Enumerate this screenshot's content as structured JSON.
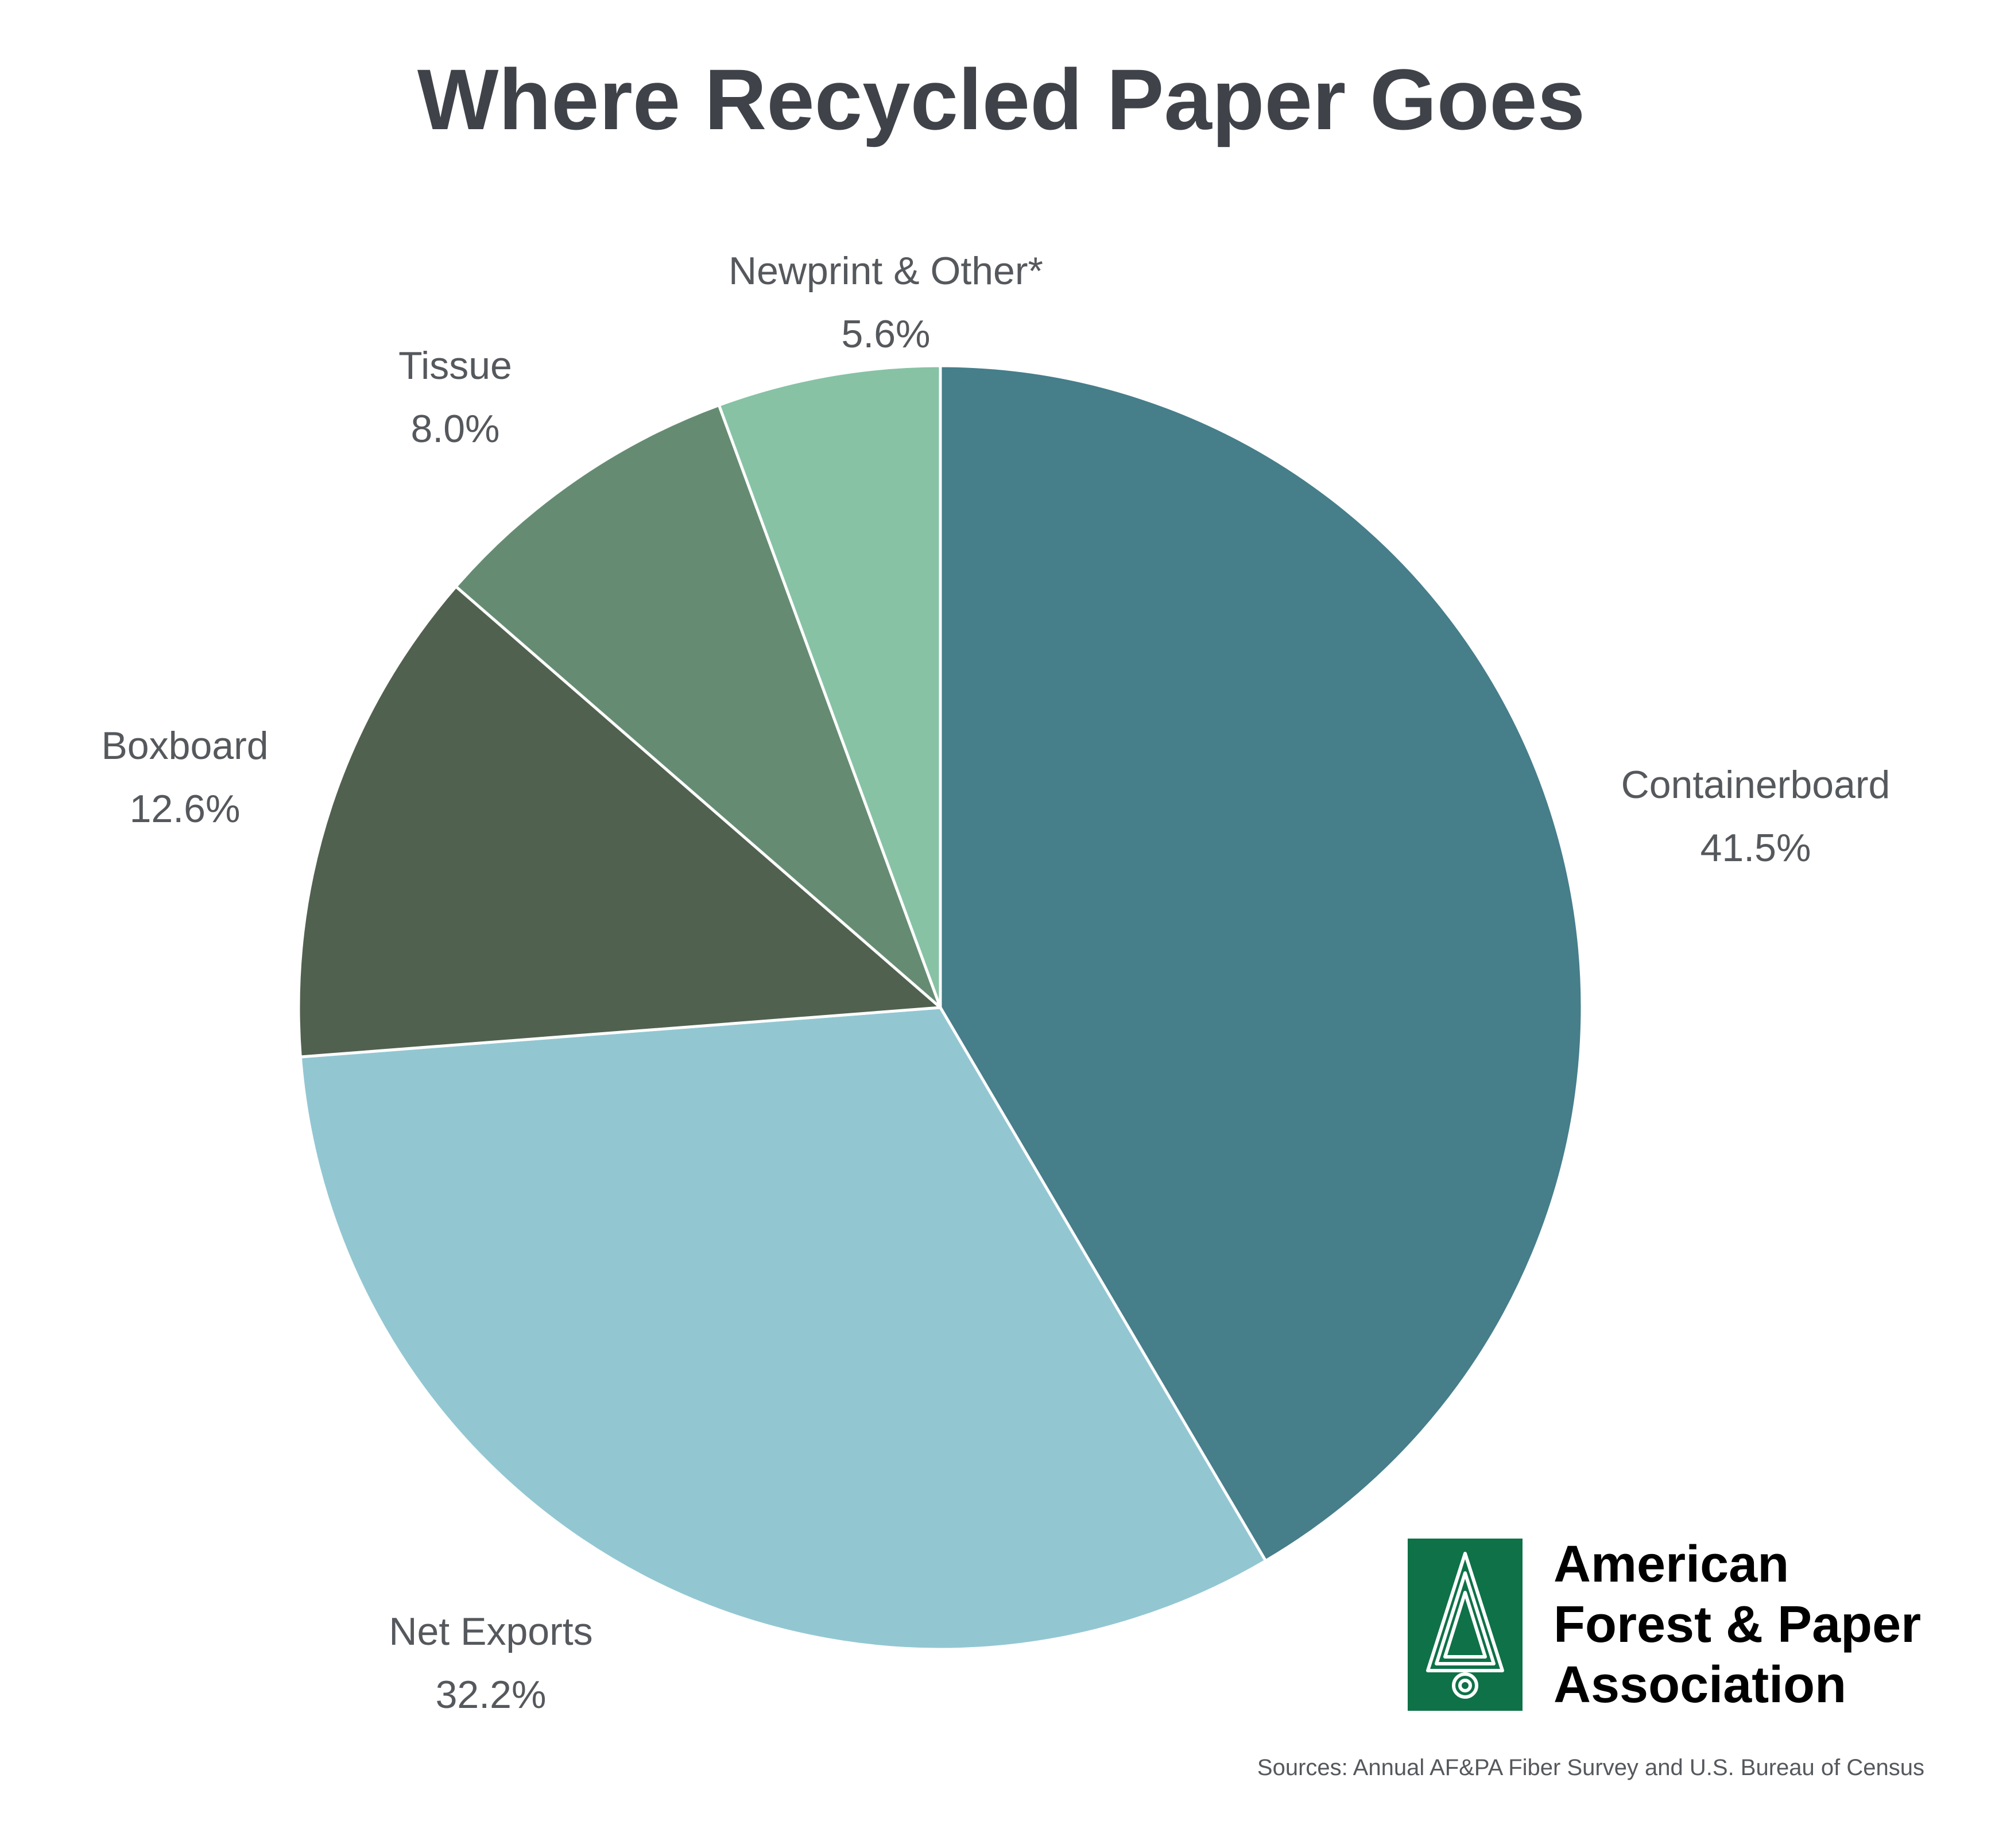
{
  "chart_data": {
    "type": "pie",
    "title": "Where Recycled Paper Goes",
    "slices": [
      {
        "label": "Containerboard",
        "value": 41.5,
        "value_label": "41.5%",
        "color": "#467e8a"
      },
      {
        "label": "Net Exports",
        "value": 32.2,
        "value_label": "32.2%",
        "color": "#92c7d2"
      },
      {
        "label": "Boxboard",
        "value": 12.6,
        "value_label": "12.6%",
        "color": "#51614f"
      },
      {
        "label": "Tissue",
        "value": 8.0,
        "value_label": "8.0%",
        "color": "#658c72"
      },
      {
        "label": "Newprint & Other*",
        "value": 5.6,
        "value_label": "5.6%",
        "color": "#87c2a5"
      }
    ],
    "start_angle": "12 o'clock",
    "direction": "clockwise",
    "slice_border_color": "#ffffff"
  },
  "source_note": "Sources: Annual AF&PA Fiber Survey and U.S. Bureau of Census",
  "logo": {
    "lines": [
      "American",
      "Forest & Paper",
      "Association"
    ],
    "mark_color": "#0e7147",
    "icon": "pine-tree-icon"
  }
}
